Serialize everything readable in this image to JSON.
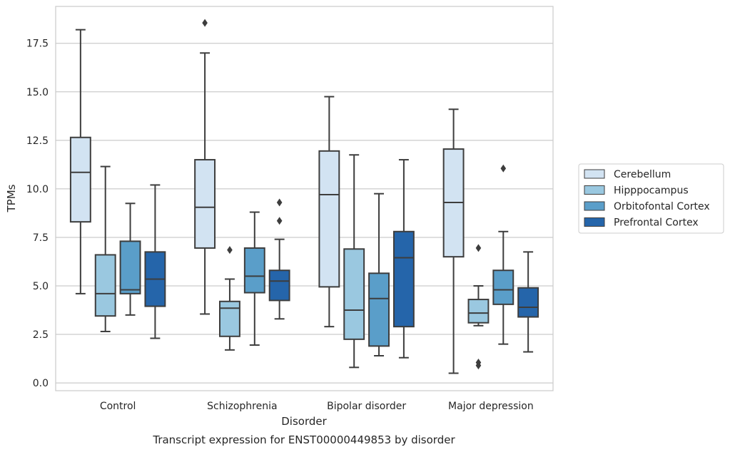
{
  "chart_data": {
    "type": "box",
    "title": "",
    "caption": "Transcript expression for ENST00000449853 by disorder",
    "xlabel": "Disorder",
    "ylabel": "TPMs",
    "ylim": [
      -0.4,
      19.4
    ],
    "yticks": [
      0.0,
      2.5,
      5.0,
      7.5,
      10.0,
      12.5,
      15.0,
      17.5
    ],
    "ytick_labels": [
      "0.0",
      "2.5",
      "5.0",
      "7.5",
      "10.0",
      "12.5",
      "15.0",
      "17.5"
    ],
    "grid": "horizontal",
    "legend_position": "right",
    "categories": [
      "Control",
      "Schizophrenia",
      "Bipolar disorder",
      "Major depression"
    ],
    "series": [
      {
        "name": "Cerebellum",
        "color": "#d2e3f2",
        "boxes": [
          {
            "whislo": 4.6,
            "q1": 8.3,
            "med": 10.85,
            "q3": 12.65,
            "whishi": 18.2,
            "fliers": []
          },
          {
            "whislo": 3.55,
            "q1": 6.95,
            "med": 9.05,
            "q3": 11.5,
            "whishi": 17.0,
            "fliers": [
              18.55
            ]
          },
          {
            "whislo": 2.9,
            "q1": 4.95,
            "med": 9.7,
            "q3": 11.95,
            "whishi": 14.75,
            "fliers": []
          },
          {
            "whislo": 0.5,
            "q1": 6.5,
            "med": 9.3,
            "q3": 12.05,
            "whishi": 14.1,
            "fliers": []
          }
        ]
      },
      {
        "name": "Hipppocampus",
        "color": "#9ac8e0",
        "boxes": [
          {
            "whislo": 2.65,
            "q1": 3.45,
            "med": 4.6,
            "q3": 6.6,
            "whishi": 11.15,
            "fliers": []
          },
          {
            "whislo": 1.7,
            "q1": 2.4,
            "med": 3.85,
            "q3": 4.2,
            "whishi": 5.35,
            "fliers": [
              6.85
            ]
          },
          {
            "whislo": 0.8,
            "q1": 2.25,
            "med": 3.75,
            "q3": 6.9,
            "whishi": 11.75,
            "fliers": []
          },
          {
            "whislo": 2.95,
            "q1": 3.1,
            "med": 3.6,
            "q3": 4.3,
            "whishi": 5.0,
            "fliers": [
              6.95,
              1.05,
              0.9
            ]
          }
        ]
      },
      {
        "name": "Orbitofontal Cortex",
        "color": "#5a9ec9",
        "boxes": [
          {
            "whislo": 3.5,
            "q1": 4.6,
            "med": 4.8,
            "q3": 7.3,
            "whishi": 9.25,
            "fliers": []
          },
          {
            "whislo": 1.95,
            "q1": 4.65,
            "med": 5.5,
            "q3": 6.95,
            "whishi": 8.8,
            "fliers": []
          },
          {
            "whislo": 1.4,
            "q1": 1.9,
            "med": 4.35,
            "q3": 5.65,
            "whishi": 9.75,
            "fliers": []
          },
          {
            "whislo": 2.0,
            "q1": 4.05,
            "med": 4.8,
            "q3": 5.8,
            "whishi": 7.8,
            "fliers": [
              11.05
            ]
          }
        ]
      },
      {
        "name": "Prefrontal Cortex",
        "color": "#2565aa",
        "boxes": [
          {
            "whislo": 2.3,
            "q1": 3.95,
            "med": 5.35,
            "q3": 6.75,
            "whishi": 10.2,
            "fliers": []
          },
          {
            "whislo": 3.3,
            "q1": 4.25,
            "med": 5.25,
            "q3": 5.8,
            "whishi": 7.4,
            "fliers": [
              9.3,
              8.35
            ]
          },
          {
            "whislo": 1.3,
            "q1": 2.9,
            "med": 6.45,
            "q3": 7.8,
            "whishi": 11.5,
            "fliers": []
          },
          {
            "whislo": 1.6,
            "q1": 3.4,
            "med": 3.9,
            "q3": 4.9,
            "whishi": 6.75,
            "fliers": []
          }
        ]
      }
    ]
  }
}
